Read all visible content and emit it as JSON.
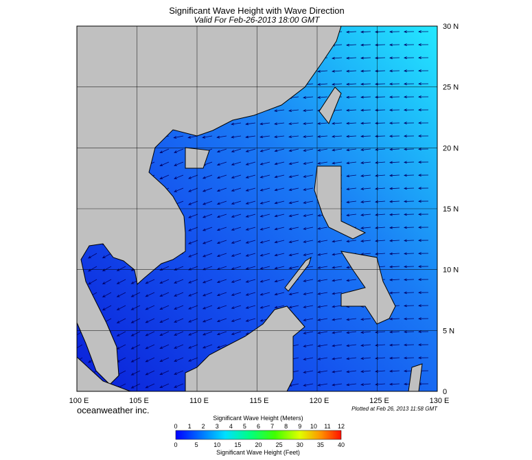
{
  "header": {
    "title": "Significant Wave Height with Wave Direction",
    "subtitle": "Valid For Feb-26-2013 18:00 GMT"
  },
  "map": {
    "lat_labels": [
      "30 N",
      "25 N",
      "20 N",
      "15 N",
      "10 N",
      "5 N",
      "0"
    ],
    "lon_labels": [
      "100 E",
      "105 E",
      "110 E",
      "115 E",
      "120 E",
      "125 E",
      "130 E"
    ],
    "credit": "oceanweather inc.",
    "plotted": "Plotted at Feb 26, 2013 11:58 GMT"
  },
  "legend": {
    "title_meters": "Significant Wave Height (Meters)",
    "meter_ticks": [
      "0",
      "1",
      "2",
      "3",
      "4",
      "5",
      "6",
      "7",
      "8",
      "9",
      "10",
      "11",
      "12"
    ],
    "feet_ticks": [
      "0",
      "5",
      "10",
      "15",
      "20",
      "25",
      "30",
      "35",
      "40"
    ],
    "title_feet": "Significant Wave Height (Feet)"
  }
}
